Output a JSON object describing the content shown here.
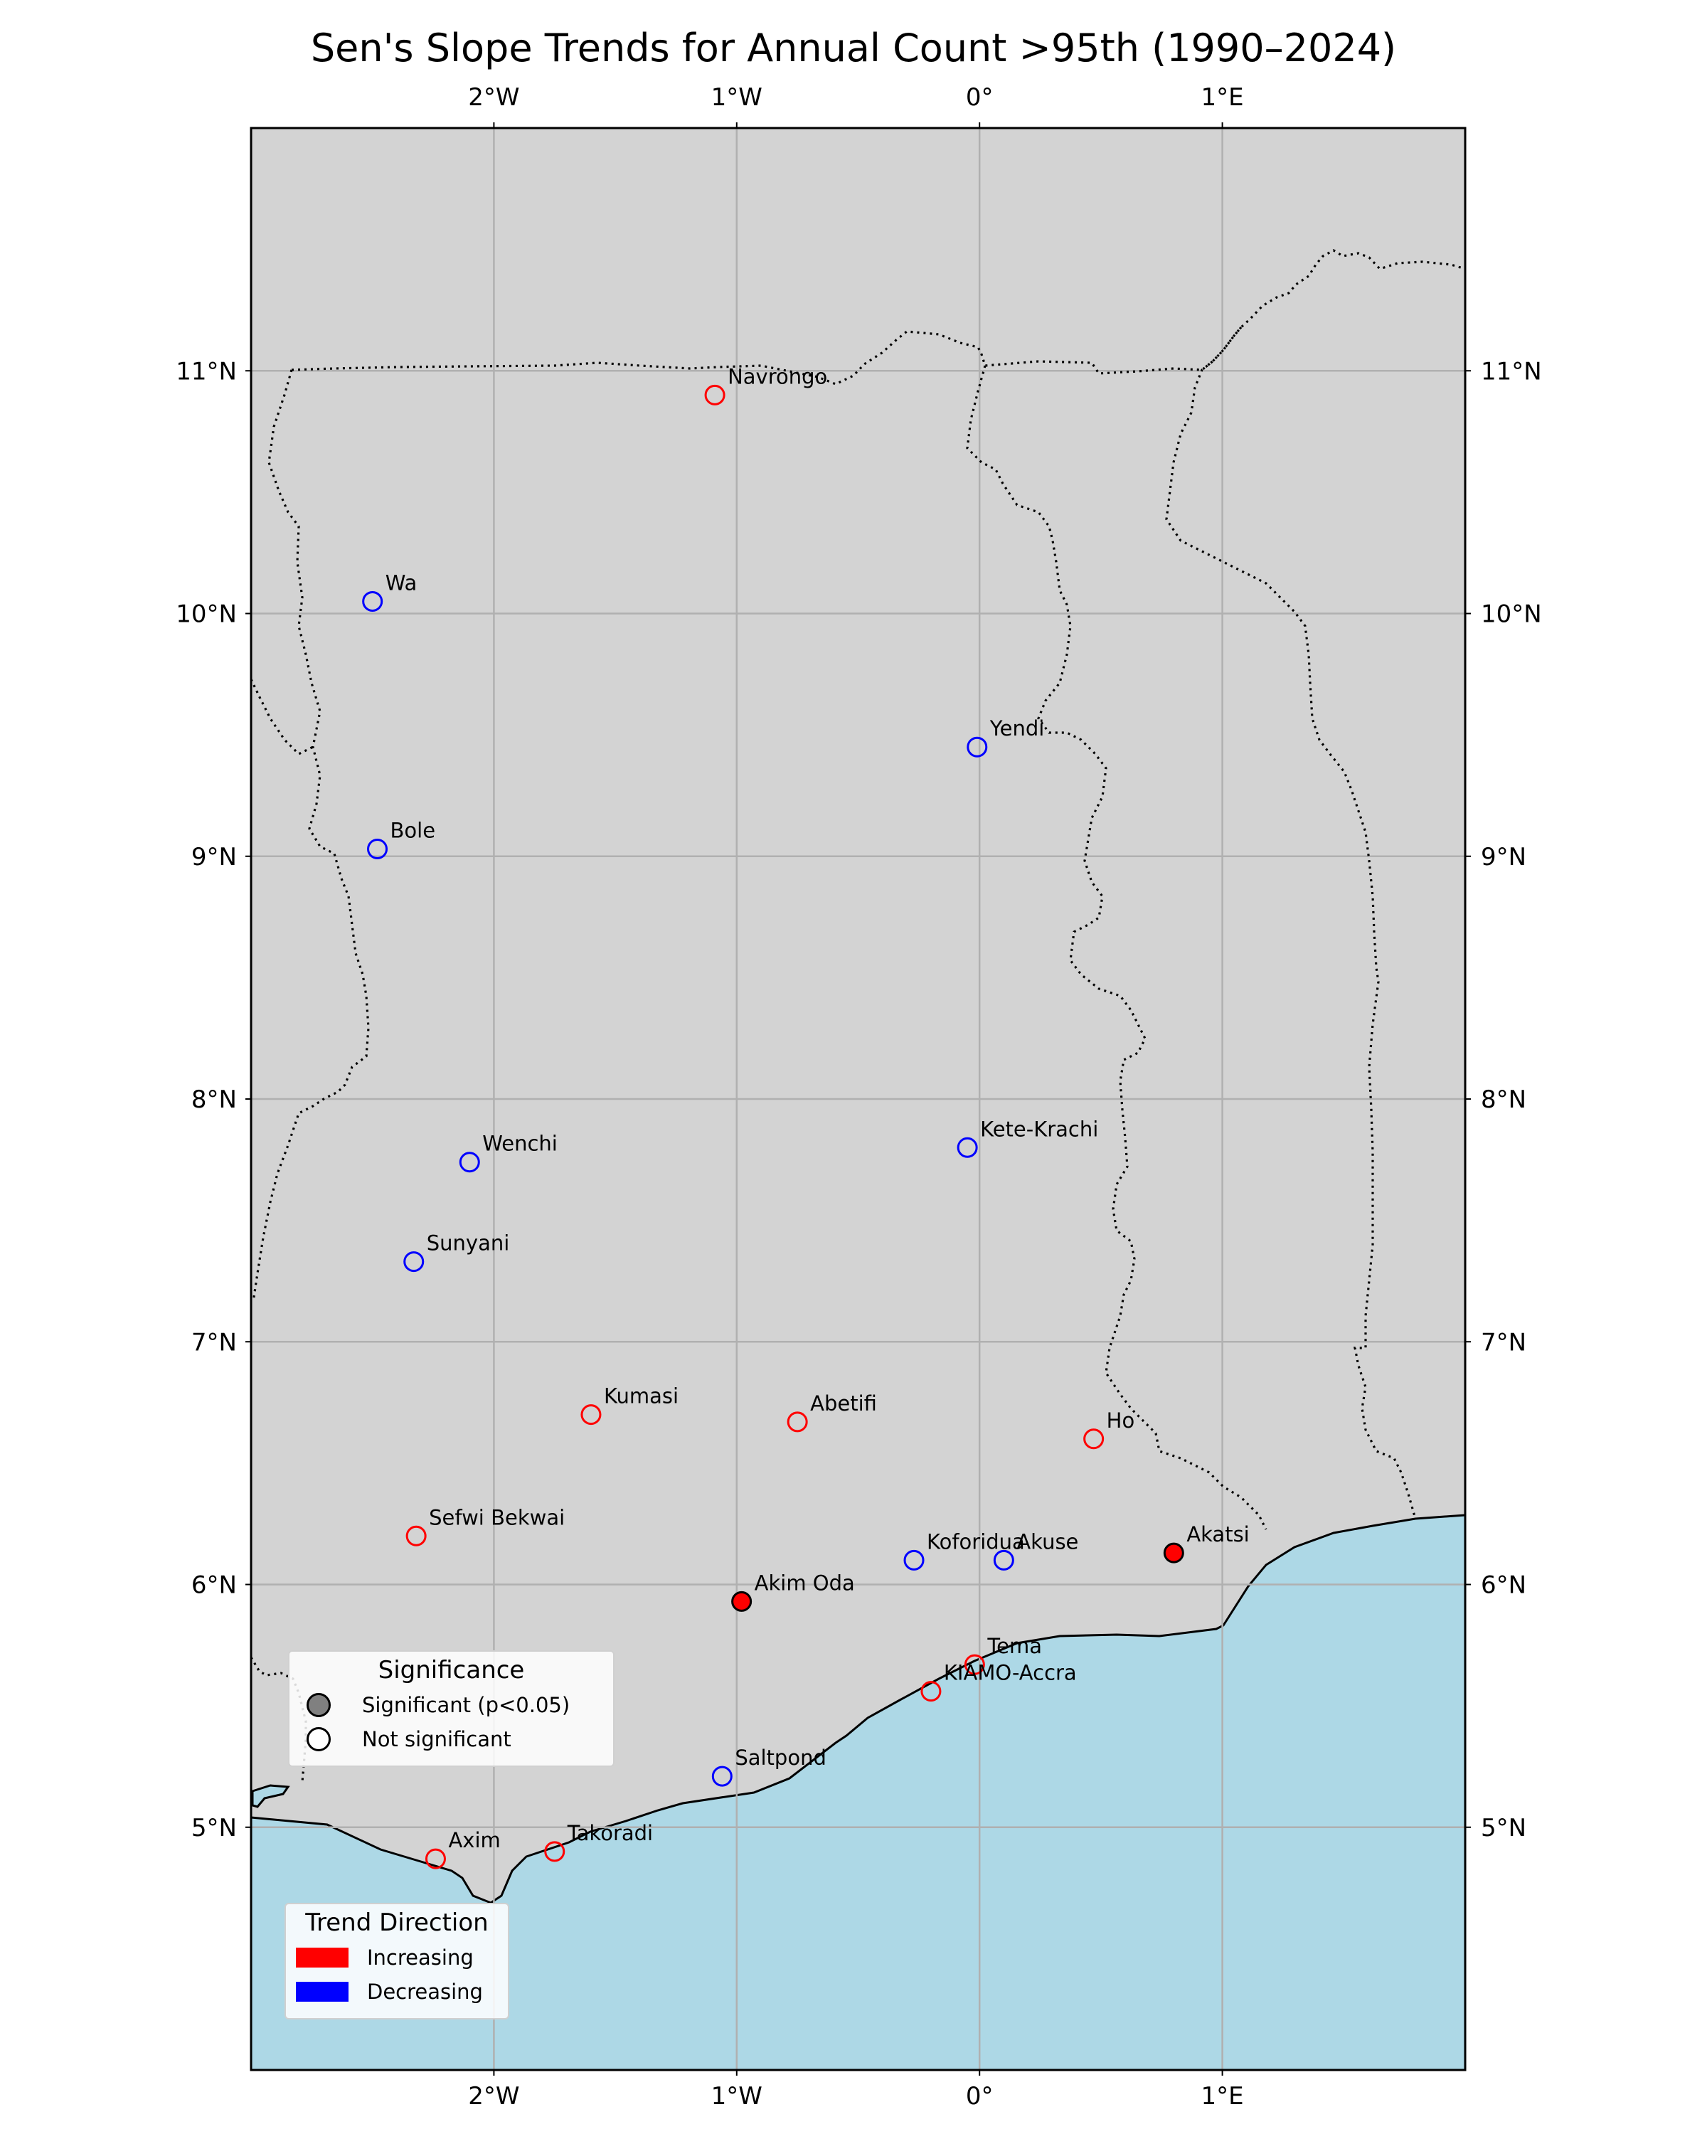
{
  "title": "Sen's Slope Trends for Annual Count >95th (1990–2024)",
  "map": {
    "lon_range": [
      -3.0,
      2.0
    ],
    "lat_range": [
      4.0,
      12.0
    ],
    "lon_ticks": [
      {
        "value": -2,
        "label": "2°W"
      },
      {
        "value": -1,
        "label": "1°W"
      },
      {
        "value": 0,
        "label": "0°"
      },
      {
        "value": 1,
        "label": "1°E"
      }
    ],
    "lat_ticks": [
      {
        "value": 5,
        "label": "5°N"
      },
      {
        "value": 6,
        "label": "6°N"
      },
      {
        "value": 7,
        "label": "7°N"
      },
      {
        "value": 8,
        "label": "8°N"
      },
      {
        "value": 9,
        "label": "9°N"
      },
      {
        "value": 10,
        "label": "10°N"
      },
      {
        "value": 11,
        "label": "11°N"
      }
    ],
    "grid": true,
    "colors": {
      "land": "#d3d3d3",
      "ocean": "#add8e6",
      "grid": "#b0b0b0",
      "increasing": "#ff0000",
      "decreasing": "#0000ff"
    }
  },
  "stations": [
    {
      "name": "Navrongo",
      "lon": -1.09,
      "lat": 10.9,
      "trend": "increasing",
      "significant": false
    },
    {
      "name": "Wa",
      "lon": -2.5,
      "lat": 10.05,
      "trend": "decreasing",
      "significant": false
    },
    {
      "name": "Yendi",
      "lon": -0.01,
      "lat": 9.45,
      "trend": "decreasing",
      "significant": false
    },
    {
      "name": "Bole",
      "lon": -2.48,
      "lat": 9.03,
      "trend": "decreasing",
      "significant": false
    },
    {
      "name": "Wenchi",
      "lon": -2.1,
      "lat": 7.74,
      "trend": "decreasing",
      "significant": false
    },
    {
      "name": "Kete-Krachi",
      "lon": -0.05,
      "lat": 7.8,
      "trend": "decreasing",
      "significant": false
    },
    {
      "name": "Sunyani",
      "lon": -2.33,
      "lat": 7.33,
      "trend": "decreasing",
      "significant": false
    },
    {
      "name": "Kumasi",
      "lon": -1.6,
      "lat": 6.7,
      "trend": "increasing",
      "significant": false
    },
    {
      "name": "Abetifi",
      "lon": -0.75,
      "lat": 6.67,
      "trend": "increasing",
      "significant": false
    },
    {
      "name": "Ho",
      "lon": 0.47,
      "lat": 6.6,
      "trend": "increasing",
      "significant": false
    },
    {
      "name": "Sefwi Bekwai",
      "lon": -2.32,
      "lat": 6.2,
      "trend": "increasing",
      "significant": false
    },
    {
      "name": "Koforidua",
      "lon": -0.27,
      "lat": 6.1,
      "trend": "decreasing",
      "significant": false
    },
    {
      "name": "Akuse",
      "lon": 0.1,
      "lat": 6.1,
      "trend": "decreasing",
      "significant": false
    },
    {
      "name": "Akatsi",
      "lon": 0.8,
      "lat": 6.13,
      "trend": "increasing",
      "significant": true
    },
    {
      "name": "Akim Oda",
      "lon": -0.98,
      "lat": 5.93,
      "trend": "increasing",
      "significant": true
    },
    {
      "name": "Tema",
      "lon": -0.02,
      "lat": 5.67,
      "trend": "increasing",
      "significant": false
    },
    {
      "name": "KIAMO-Accra",
      "lon": -0.2,
      "lat": 5.56,
      "trend": "increasing",
      "significant": false
    },
    {
      "name": "Saltpond",
      "lon": -1.06,
      "lat": 5.21,
      "trend": "decreasing",
      "significant": false
    },
    {
      "name": "Axim",
      "lon": -2.24,
      "lat": 4.87,
      "trend": "increasing",
      "significant": false
    },
    {
      "name": "Takoradi",
      "lon": -1.75,
      "lat": 4.9,
      "trend": "increasing",
      "significant": false
    }
  ],
  "legend_significance": {
    "title": "Significance",
    "items": [
      {
        "label": "Significant (p<0.05)",
        "fill": "#808080"
      },
      {
        "label": "Not significant",
        "fill": "#ffffff"
      }
    ]
  },
  "legend_trend": {
    "title": "Trend Direction",
    "items": [
      {
        "label": "Increasing",
        "color": "#ff0000"
      },
      {
        "label": "Decreasing",
        "color": "#0000ff"
      }
    ]
  }
}
